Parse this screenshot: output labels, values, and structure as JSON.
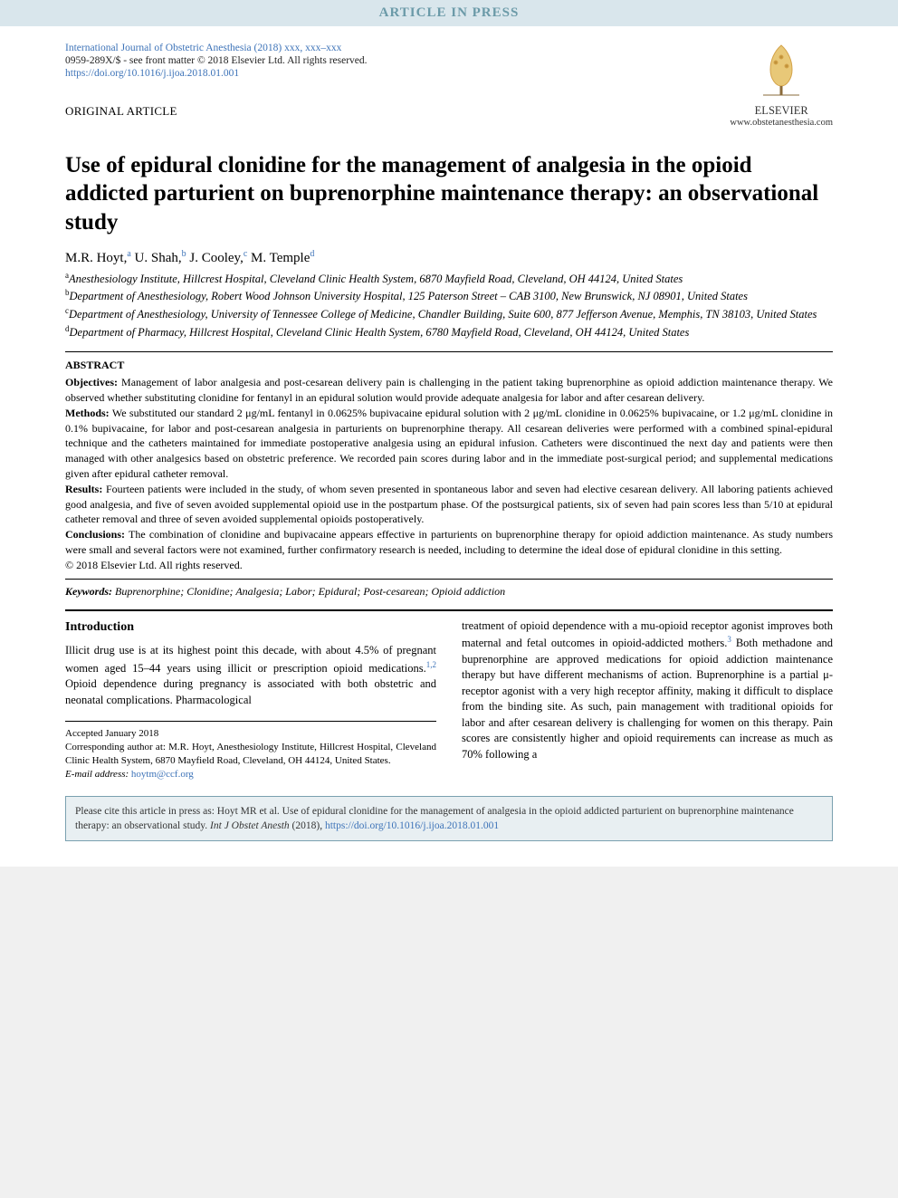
{
  "banner": "ARTICLE IN PRESS",
  "header": {
    "journal_citation": "International Journal of Obstetric Anesthesia (2018) xxx, xxx–xxx",
    "copyright_line": "0959-289X/$ - see front matter © 2018 Elsevier Ltd. All rights reserved.",
    "doi_url": "https://doi.org/10.1016/j.ijoa.2018.01.001",
    "publisher_name": "ELSEVIER",
    "publisher_url": "www.obstetanesthesia.com",
    "article_type": "ORIGINAL ARTICLE"
  },
  "title": "Use of epidural clonidine for the management of analgesia in the opioid addicted parturient on buprenorphine maintenance therapy: an observational study",
  "authors": [
    {
      "name": "M.R. Hoyt,",
      "sup": "a"
    },
    {
      "name": " U. Shah,",
      "sup": "b"
    },
    {
      "name": " J. Cooley,",
      "sup": "c"
    },
    {
      "name": " M. Temple",
      "sup": "d"
    }
  ],
  "affiliations": [
    {
      "sup": "a",
      "text": "Anesthesiology Institute, Hillcrest Hospital, Cleveland Clinic Health System, 6870 Mayfield Road, Cleveland, OH 44124, United States"
    },
    {
      "sup": "b",
      "text": "Department of Anesthesiology, Robert Wood Johnson University Hospital, 125 Paterson Street – CAB 3100, New Brunswick, NJ 08901, United States"
    },
    {
      "sup": "c",
      "text": "Department of Anesthesiology, University of Tennessee College of Medicine, Chandler Building, Suite 600, 877 Jefferson Avenue, Memphis, TN 38103, United States"
    },
    {
      "sup": "d",
      "text": "Department of Pharmacy, Hillcrest Hospital, Cleveland Clinic Health System, 6780 Mayfield Road, Cleveland, OH 44124, United States"
    }
  ],
  "abstract": {
    "heading": "ABSTRACT",
    "objectives_label": "Objectives:",
    "objectives": " Management of labor analgesia and post-cesarean delivery pain is challenging in the patient taking buprenorphine as opioid addiction maintenance therapy. We observed whether substituting clonidine for fentanyl in an epidural solution would provide adequate analgesia for labor and after cesarean delivery.",
    "methods_label": "Methods:",
    "methods": " We substituted our standard 2 μg/mL fentanyl in 0.0625% bupivacaine epidural solution with 2 μg/mL clonidine in 0.0625% bupivacaine, or 1.2 μg/mL clonidine in 0.1% bupivacaine, for labor and post-cesarean analgesia in parturients on buprenorphine therapy. All cesarean deliveries were performed with a combined spinal-epidural technique and the catheters maintained for immediate postoperative analgesia using an epidural infusion. Catheters were discontinued the next day and patients were then managed with other analgesics based on obstetric preference. We recorded pain scores during labor and in the immediate post-surgical period; and supplemental medications given after epidural catheter removal.",
    "results_label": "Results:",
    "results": " Fourteen patients were included in the study, of whom seven presented in spontaneous labor and seven had elective cesarean delivery. All laboring patients achieved good analgesia, and five of seven avoided supplemental opioid use in the postpartum phase. Of the postsurgical patients, six of seven had pain scores less than 5/10 at epidural catheter removal and three of seven avoided supplemental opioids postoperatively.",
    "conclusions_label": "Conclusions:",
    "conclusions": " The combination of clonidine and bupivacaine appears effective in parturients on buprenorphine therapy for opioid addiction maintenance. As study numbers were small and several factors were not examined, further confirmatory research is needed, including to determine the ideal dose of epidural clonidine in this setting.",
    "copyright": "© 2018 Elsevier Ltd. All rights reserved."
  },
  "keywords": {
    "label": "Keywords:",
    "text": " Buprenorphine; Clonidine; Analgesia; Labor; Epidural; Post-cesarean; Opioid addiction"
  },
  "intro": {
    "heading": "Introduction",
    "col1": "Illicit drug use is at its highest point this decade, with about 4.5% of pregnant women aged 15–44 years using illicit or prescription opioid medications.",
    "col1_ref": "1,2",
    "col1_after": " Opioid dependence during pregnancy is associated with both obstetric and neonatal complications. Pharmacological",
    "col2": "treatment of opioid dependence with a mu-opioid receptor agonist improves both maternal and fetal outcomes in opioid-addicted mothers.",
    "col2_ref": "3",
    "col2_after": " Both methadone and buprenorphine are approved medications for opioid addiction maintenance therapy but have different mechanisms of action. Buprenorphine is a partial μ-receptor agonist with a very high receptor affinity, making it difficult to displace from the binding site. As such, pain management with traditional opioids for labor and after cesarean delivery is challenging for women on this therapy. Pain scores are consistently higher and opioid requirements can increase as much as 70% following a"
  },
  "correspondence": {
    "accepted": "Accepted January 2018",
    "line1": "Corresponding author at: M.R. Hoyt, Anesthesiology Institute, Hillcrest Hospital, Cleveland Clinic Health System, 6870 Mayfield Road, Cleveland, OH 44124, United States.",
    "email_label": "E-mail address:",
    "email": "hoytm@ccf.org"
  },
  "cite_box": {
    "prefix": "Please cite this article in press as: Hoyt MR et al. Use of epidural clonidine for the management of analgesia in the opioid addicted parturient on buprenorphine maintenance therapy: an observational study. ",
    "journal_it": "Int J Obstet Anesth",
    "year": " (2018), ",
    "url": "https://doi.org/10.1016/j.ijoa.2018.01.001"
  },
  "colors": {
    "banner_bg": "#d9e6ec",
    "banner_fg": "#6b9aa8",
    "link": "#3d73b8",
    "cite_border": "#7aa0b0",
    "cite_bg": "#e8eff2"
  }
}
